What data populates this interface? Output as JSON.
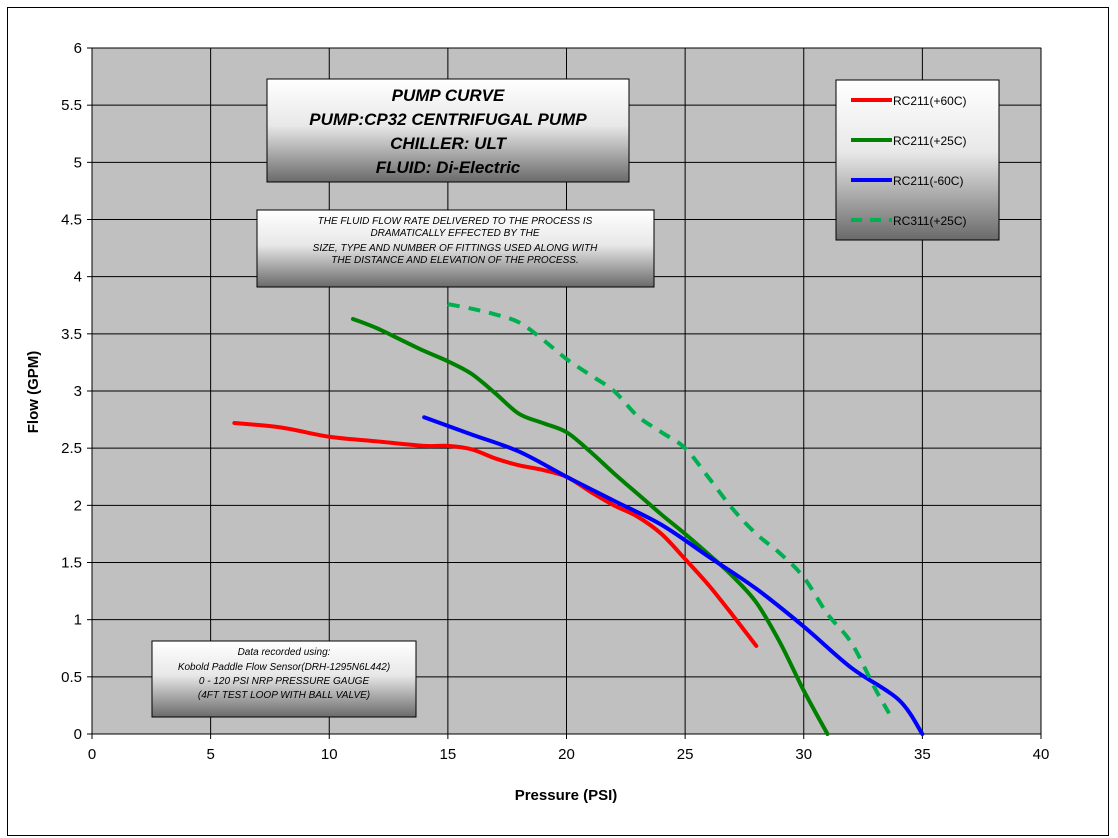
{
  "chart_data": {
    "type": "line",
    "title_lines": [
      "PUMP CURVE",
      "PUMP:CP32 CENTRIFUGAL PUMP",
      "CHILLER: ULT",
      "FLUID: Di-Electric"
    ],
    "note_lines": [
      "THE FLUID FLOW RATE DELIVERED TO THE PROCESS IS",
      "DRAMATICALLY EFFECTED BY THE",
      "SIZE, TYPE AND NUMBER OF FITTINGS USED ALONG WITH",
      "THE DISTANCE AND ELEVATION OF THE PROCESS."
    ],
    "data_note_lines": [
      "Data recorded using:",
      "Kobold Paddle Flow Sensor(DRH-1295N6L442)",
      "0 - 120 PSI NRP PRESSURE GAUGE",
      "(4FT TEST LOOP WITH BALL VALVE)"
    ],
    "xlabel": "Pressure (PSI)",
    "ylabel": "Flow (GPM)",
    "xlim": [
      0,
      40
    ],
    "ylim": [
      0,
      6
    ],
    "xticks": [
      0,
      5,
      10,
      15,
      20,
      25,
      30,
      35,
      40
    ],
    "yticks": [
      0,
      0.5,
      1,
      1.5,
      2,
      2.5,
      3,
      3.5,
      4,
      4.5,
      5,
      5.5,
      6
    ],
    "xtick_labels": [
      "0",
      "5",
      "10",
      "15",
      "20",
      "25",
      "30",
      "35",
      "40"
    ],
    "ytick_labels": [
      "0",
      "0.5",
      "1",
      "1.5",
      "2",
      "2.5",
      "3",
      "3.5",
      "4",
      "4.5",
      "5",
      "5.5",
      "6"
    ],
    "grid": true,
    "legend_position": "top-right",
    "plot_background": "#c0c0c0",
    "series": [
      {
        "name": "RC211(+60C)",
        "color": "#ff0000",
        "dash": "solid",
        "x": [
          6,
          8,
          10,
          12,
          14,
          15,
          16,
          17,
          18,
          19,
          20,
          21,
          22,
          23,
          24,
          25,
          26,
          27,
          28
        ],
        "y": [
          2.72,
          2.68,
          2.6,
          2.56,
          2.52,
          2.52,
          2.49,
          2.41,
          2.35,
          2.31,
          2.25,
          2.12,
          2.0,
          1.9,
          1.75,
          1.53,
          1.3,
          1.04,
          0.77
        ]
      },
      {
        "name": "RC211(+25C)",
        "color": "#008000",
        "dash": "solid",
        "x": [
          11,
          12,
          13,
          14,
          15,
          16,
          17,
          18,
          19,
          20,
          21,
          22,
          23,
          24,
          25,
          26,
          27,
          28,
          29,
          30,
          31
        ],
        "y": [
          3.63,
          3.55,
          3.45,
          3.35,
          3.26,
          3.15,
          2.98,
          2.8,
          2.72,
          2.64,
          2.47,
          2.28,
          2.1,
          1.92,
          1.75,
          1.57,
          1.38,
          1.15,
          0.8,
          0.38,
          0.0
        ]
      },
      {
        "name": "RC211(-60C)",
        "color": "#0000ff",
        "dash": "solid",
        "x": [
          14,
          16,
          18,
          20,
          22,
          24,
          26,
          28,
          30,
          32,
          34,
          35
        ],
        "y": [
          2.77,
          2.62,
          2.47,
          2.25,
          2.04,
          1.83,
          1.55,
          1.27,
          0.94,
          0.58,
          0.3,
          0.0
        ]
      },
      {
        "name": "RC311(+25C)",
        "color": "#00b050",
        "dash": "dashed",
        "x": [
          15,
          16,
          17,
          18,
          19,
          20,
          21,
          22,
          23,
          24,
          25,
          26,
          27,
          28,
          29,
          30,
          31,
          32,
          33,
          33.6
        ],
        "y": [
          3.76,
          3.72,
          3.67,
          3.6,
          3.45,
          3.28,
          3.14,
          3.0,
          2.78,
          2.64,
          2.5,
          2.24,
          1.97,
          1.75,
          1.58,
          1.37,
          1.05,
          0.8,
          0.4,
          0.18
        ]
      }
    ]
  }
}
